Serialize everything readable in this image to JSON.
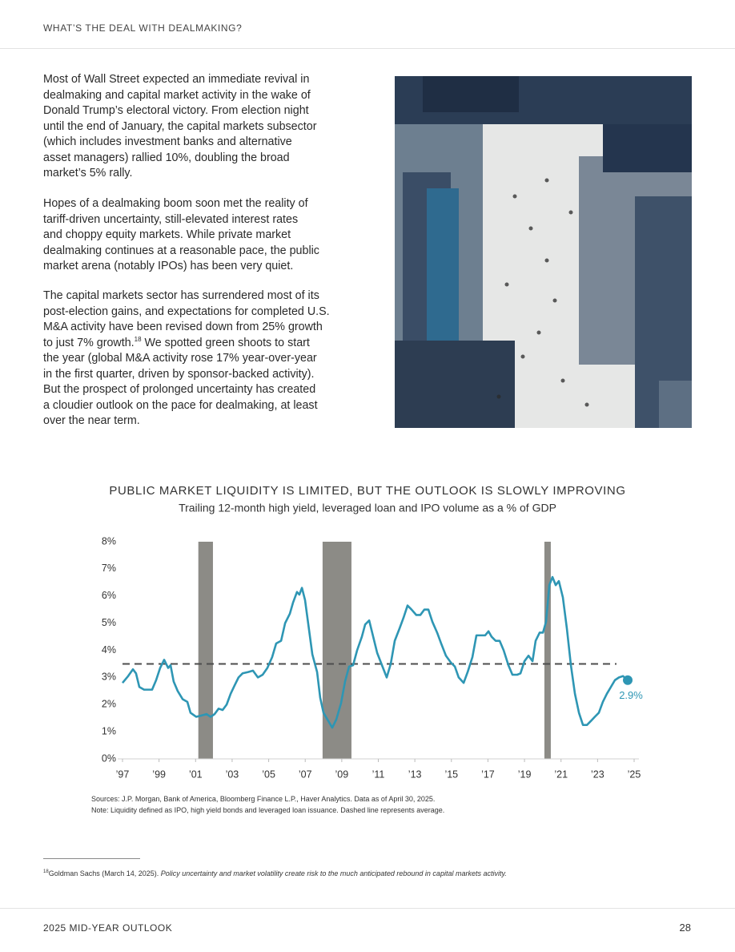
{
  "header": {
    "title": "WHAT’S THE DEAL WITH DEALMAKING?"
  },
  "body": {
    "paragraphs": [
      [
        "Most of Wall Street expected an immediate revival in",
        "dealmaking and capital market activity in the wake of",
        "Donald Trump’s electoral victory. From election night",
        "until the end of January, the capital markets subsector",
        "(which includes investment banks and alternative",
        "asset managers) rallied 10%, doubling the broad",
        "market’s 5% rally."
      ],
      [
        "Hopes of a dealmaking boom soon met the reality of",
        "tariff-driven uncertainty, still-elevated interest rates",
        "and choppy equity markets. While private market",
        "dealmaking continues at a reasonable pace, the public",
        "market arena (notably IPOs) has been very quiet."
      ],
      [
        "The capital markets sector has surrendered most of its",
        "post-election gains, and expectations for completed U.S.",
        "M&A activity have been revised down from 25% growth",
        {
          "text": "to just 7% growth.",
          "sup": "18",
          "after": " We spotted green shoots to start"
        },
        "the year (global M&A activity rose 17% year-over-year",
        "in the first quarter, driven by sponsor-backed activity).",
        "But the prospect of prolonged uncertainty has created",
        "a cloudier outlook on the pace for dealmaking, at least",
        "over the near term."
      ]
    ]
  },
  "chart_data": {
    "type": "line",
    "title": "PUBLIC MARKET LIQUIDITY IS LIMITED, BUT THE OUTLOOK IS SLOWLY IMPROVING",
    "subtitle": "Trailing 12-month high yield, leveraged loan and IPO volume as a % of GDP",
    "x": [
      1997.0,
      1997.31,
      1997.57,
      1997.74,
      1997.92,
      1998.18,
      1998.45,
      1998.62,
      1998.84,
      1999.06,
      1999.28,
      1999.5,
      1999.63,
      1999.8,
      2000.02,
      2000.29,
      2000.55,
      2000.72,
      2001.03,
      2001.34,
      2001.6,
      2001.82,
      2002.04,
      2002.26,
      2002.48,
      2002.7,
      2002.92,
      2003.13,
      2003.35,
      2003.57,
      2003.88,
      2004.14,
      2004.41,
      2004.67,
      2004.93,
      2005.19,
      2005.41,
      2005.68,
      2005.9,
      2006.16,
      2006.33,
      2006.55,
      2006.68,
      2006.82,
      2006.99,
      2007.17,
      2007.39,
      2007.65,
      2007.82,
      2008.0,
      2008.26,
      2008.48,
      2008.7,
      2008.96,
      2009.18,
      2009.4,
      2009.62,
      2009.84,
      2010.1,
      2010.28,
      2010.5,
      2010.72,
      2010.94,
      2011.2,
      2011.46,
      2011.68,
      2011.9,
      2012.16,
      2012.38,
      2012.6,
      2012.82,
      2013.08,
      2013.3,
      2013.52,
      2013.74,
      2013.96,
      2014.22,
      2014.44,
      2014.7,
      2014.97,
      2015.19,
      2015.4,
      2015.67,
      2015.89,
      2016.15,
      2016.37,
      2016.63,
      2016.85,
      2017.03,
      2017.2,
      2017.42,
      2017.64,
      2017.86,
      2018.12,
      2018.34,
      2018.6,
      2018.78,
      2019.0,
      2019.22,
      2019.44,
      2019.61,
      2019.83,
      2020.01,
      2020.18,
      2020.36,
      2020.53,
      2020.71,
      2020.88,
      2021.1,
      2021.32,
      2021.54,
      2021.76,
      2021.98,
      2022.2,
      2022.42,
      2022.64,
      2022.85,
      2023.07,
      2023.29,
      2023.51,
      2023.73,
      2023.95,
      2024.17,
      2024.39,
      2024.65
    ],
    "values": [
      2.8,
      3.05,
      3.3,
      3.15,
      2.65,
      2.55,
      2.55,
      2.55,
      2.9,
      3.35,
      3.65,
      3.35,
      3.45,
      2.85,
      2.5,
      2.2,
      2.1,
      1.7,
      1.55,
      1.6,
      1.65,
      1.55,
      1.65,
      1.85,
      1.8,
      2.0,
      2.4,
      2.7,
      3.0,
      3.15,
      3.2,
      3.25,
      3.0,
      3.1,
      3.35,
      3.75,
      4.25,
      4.35,
      5.0,
      5.35,
      5.75,
      6.15,
      6.05,
      6.3,
      5.85,
      4.95,
      3.85,
      3.2,
      2.25,
      1.7,
      1.4,
      1.15,
      1.45,
      2.05,
      2.85,
      3.4,
      3.45,
      4.0,
      4.5,
      4.95,
      5.1,
      4.5,
      3.9,
      3.45,
      3.0,
      3.5,
      4.35,
      4.8,
      5.2,
      5.65,
      5.5,
      5.3,
      5.3,
      5.5,
      5.5,
      5.05,
      4.65,
      4.25,
      3.8,
      3.55,
      3.4,
      3.0,
      2.8,
      3.2,
      3.75,
      4.55,
      4.55,
      4.55,
      4.7,
      4.5,
      4.35,
      4.35,
      4.0,
      3.45,
      3.1,
      3.1,
      3.15,
      3.6,
      3.8,
      3.6,
      4.35,
      4.65,
      4.65,
      5.05,
      6.4,
      6.7,
      6.4,
      6.55,
      5.95,
      4.8,
      3.45,
      2.4,
      1.7,
      1.25,
      1.25,
      1.4,
      1.55,
      1.7,
      2.1,
      2.4,
      2.65,
      2.9,
      3.0,
      3.05,
      2.9
    ],
    "end_label": "2.9%",
    "color": "#2e96b4",
    "average": 3.5,
    "average_color": "#4d4d4d",
    "shaded_periods": [
      [
        2001.15,
        2001.95
      ],
      [
        2007.95,
        2009.53
      ],
      [
        2020.09,
        2020.44
      ]
    ],
    "shade_color": "#8c8b86",
    "xlim": [
      1997,
      2025
    ],
    "ylim": [
      0,
      8
    ],
    "xticks": [
      {
        "value": 1997,
        "label": "’97"
      },
      {
        "value": 1999,
        "label": "’99"
      },
      {
        "value": 2001,
        "label": "’01"
      },
      {
        "value": 2003,
        "label": "’03"
      },
      {
        "value": 2005,
        "label": "’05"
      },
      {
        "value": 2007,
        "label": "’07"
      },
      {
        "value": 2009,
        "label": "’09"
      },
      {
        "value": 2011,
        "label": "’11"
      },
      {
        "value": 2013,
        "label": "’13"
      },
      {
        "value": 2015,
        "label": "’15"
      },
      {
        "value": 2017,
        "label": "’17"
      },
      {
        "value": 2019,
        "label": "’19"
      },
      {
        "value": 2021,
        "label": "’21"
      },
      {
        "value": 2023,
        "label": "’23"
      },
      {
        "value": 2025,
        "label": "’25"
      }
    ],
    "yticks": [
      {
        "value": 0,
        "label": "0%"
      },
      {
        "value": 1,
        "label": "1%"
      },
      {
        "value": 2,
        "label": "2%"
      },
      {
        "value": 3,
        "label": "3%"
      },
      {
        "value": 4,
        "label": "4%"
      },
      {
        "value": 5,
        "label": "5%"
      },
      {
        "value": 6,
        "label": "6%"
      },
      {
        "value": 7,
        "label": "7%"
      },
      {
        "value": 8,
        "label": "8%"
      }
    ],
    "grid": false,
    "sources": "Sources: J.P. Morgan, Bank of America, Bloomberg Finance L.P., Haver Analytics. Data as of April 30, 2025.",
    "note": "Note: Liquidity defined as IPO, high yield bonds and leveraged loan issuance. Dashed line represents average."
  },
  "footnote": {
    "number": "18",
    "text": "Goldman Sachs (March 14, 2025). ",
    "italic": "Policy uncertainty and market volatility create risk to the much anticipated rebound in capital markets activity."
  },
  "footer": {
    "title": "2025 MID-YEAR OUTLOOK",
    "page": "28"
  }
}
